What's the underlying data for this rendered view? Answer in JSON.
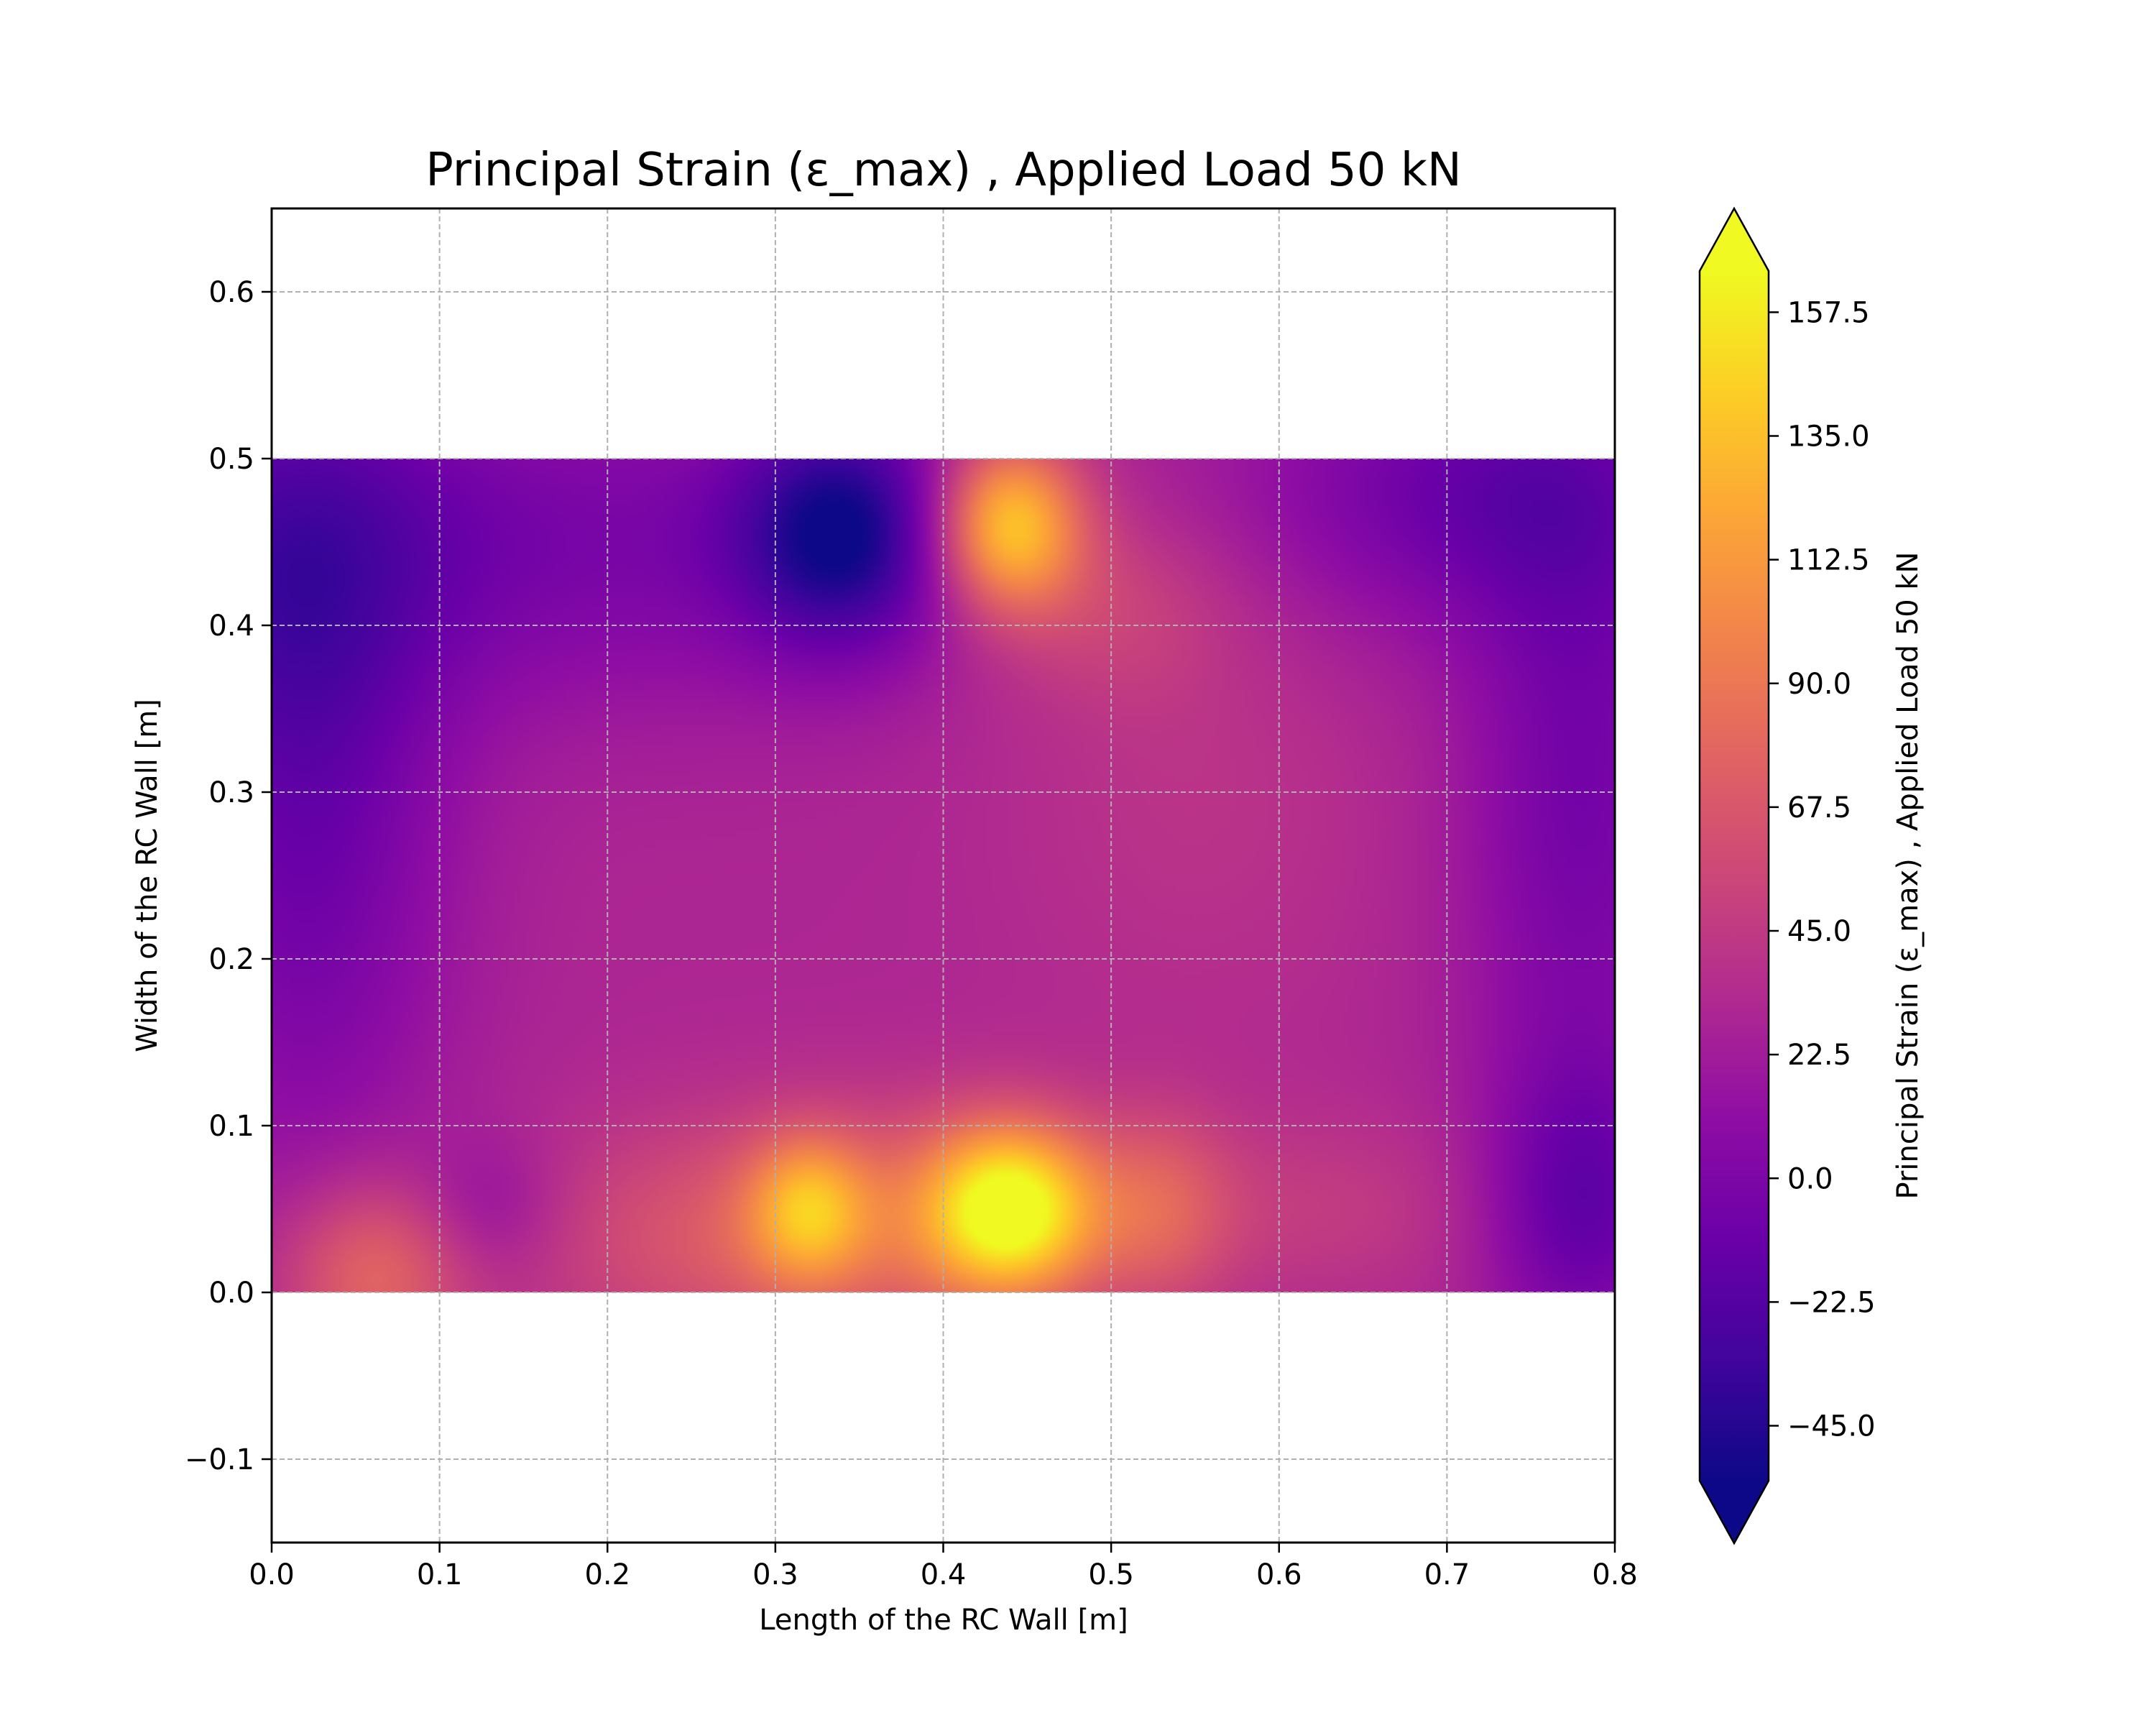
{
  "chart_data": {
    "type": "heatmap",
    "title": "Principal Strain (ε_max) , Applied Load 50 kN",
    "xlabel": "Length of the RC Wall [m]",
    "ylabel": "Width of the RC Wall [m]",
    "xlim": [
      0.0,
      0.8
    ],
    "ylim": [
      -0.15,
      0.65
    ],
    "x_ticks": [
      "0.0",
      "0.1",
      "0.2",
      "0.3",
      "0.4",
      "0.5",
      "0.6",
      "0.7",
      "0.8"
    ],
    "y_ticks": [
      "−0.1",
      "0.0",
      "0.1",
      "0.2",
      "0.3",
      "0.4",
      "0.5",
      "0.6"
    ],
    "grid": true,
    "colormap": "plasma",
    "colorbar": {
      "label": "Principal Strain (ε_max) , Applied Load 50 kN",
      "vmin": -55,
      "vmax": 165,
      "extend": "both",
      "ticks": [
        "157.5",
        "135.0",
        "112.5",
        "90.0",
        "67.5",
        "45.0",
        "22.5",
        "0.0",
        "−22.5",
        "−45.0"
      ],
      "tick_values": [
        157.5,
        135.0,
        112.5,
        90.0,
        67.5,
        45.0,
        22.5,
        0.0,
        -22.5,
        -45.0
      ]
    },
    "field_domain": {
      "x": [
        0.0,
        0.8
      ],
      "y": [
        0.0,
        0.5
      ]
    },
    "field_base": 30,
    "features": [
      {
        "x": 0.44,
        "y": 0.05,
        "sx": 0.035,
        "sy": 0.035,
        "amp": 125
      },
      {
        "x": 0.32,
        "y": 0.05,
        "sx": 0.025,
        "sy": 0.03,
        "amp": 70
      },
      {
        "x": 0.38,
        "y": 0.04,
        "sx": 0.09,
        "sy": 0.05,
        "amp": 40
      },
      {
        "x": 0.53,
        "y": 0.05,
        "sx": 0.03,
        "sy": 0.04,
        "amp": 35
      },
      {
        "x": 0.06,
        "y": 0.01,
        "sx": 0.04,
        "sy": 0.04,
        "amp": 50
      },
      {
        "x": 0.25,
        "y": 0.03,
        "sx": 0.08,
        "sy": 0.05,
        "amp": 25
      },
      {
        "x": 0.63,
        "y": 0.05,
        "sx": 0.07,
        "sy": 0.04,
        "amp": 15
      },
      {
        "x": 0.13,
        "y": 0.05,
        "sx": 0.03,
        "sy": 0.03,
        "amp": -20
      },
      {
        "x": 0.44,
        "y": 0.46,
        "sx": 0.03,
        "sy": 0.035,
        "amp": 110
      },
      {
        "x": 0.5,
        "y": 0.41,
        "sx": 0.05,
        "sy": 0.04,
        "amp": 20
      },
      {
        "x": 0.34,
        "y": 0.455,
        "sx": 0.045,
        "sy": 0.05,
        "amp": -75
      },
      {
        "x": 0.02,
        "y": 0.29,
        "sx": 0.06,
        "sy": 0.15,
        "amp": -40
      },
      {
        "x": 0.0,
        "y": 0.45,
        "sx": 0.08,
        "sy": 0.08,
        "amp": -35
      },
      {
        "x": 0.78,
        "y": 0.05,
        "sx": 0.04,
        "sy": 0.06,
        "amp": -40
      },
      {
        "x": 0.78,
        "y": 0.3,
        "sx": 0.05,
        "sy": 0.15,
        "amp": -35
      },
      {
        "x": 0.72,
        "y": 0.48,
        "sx": 0.1,
        "sy": 0.06,
        "amp": -40
      },
      {
        "x": 0.2,
        "y": 0.45,
        "sx": 0.12,
        "sy": 0.07,
        "amp": -30
      },
      {
        "x": 0.55,
        "y": 0.3,
        "sx": 0.08,
        "sy": 0.1,
        "amp": 10
      }
    ]
  }
}
